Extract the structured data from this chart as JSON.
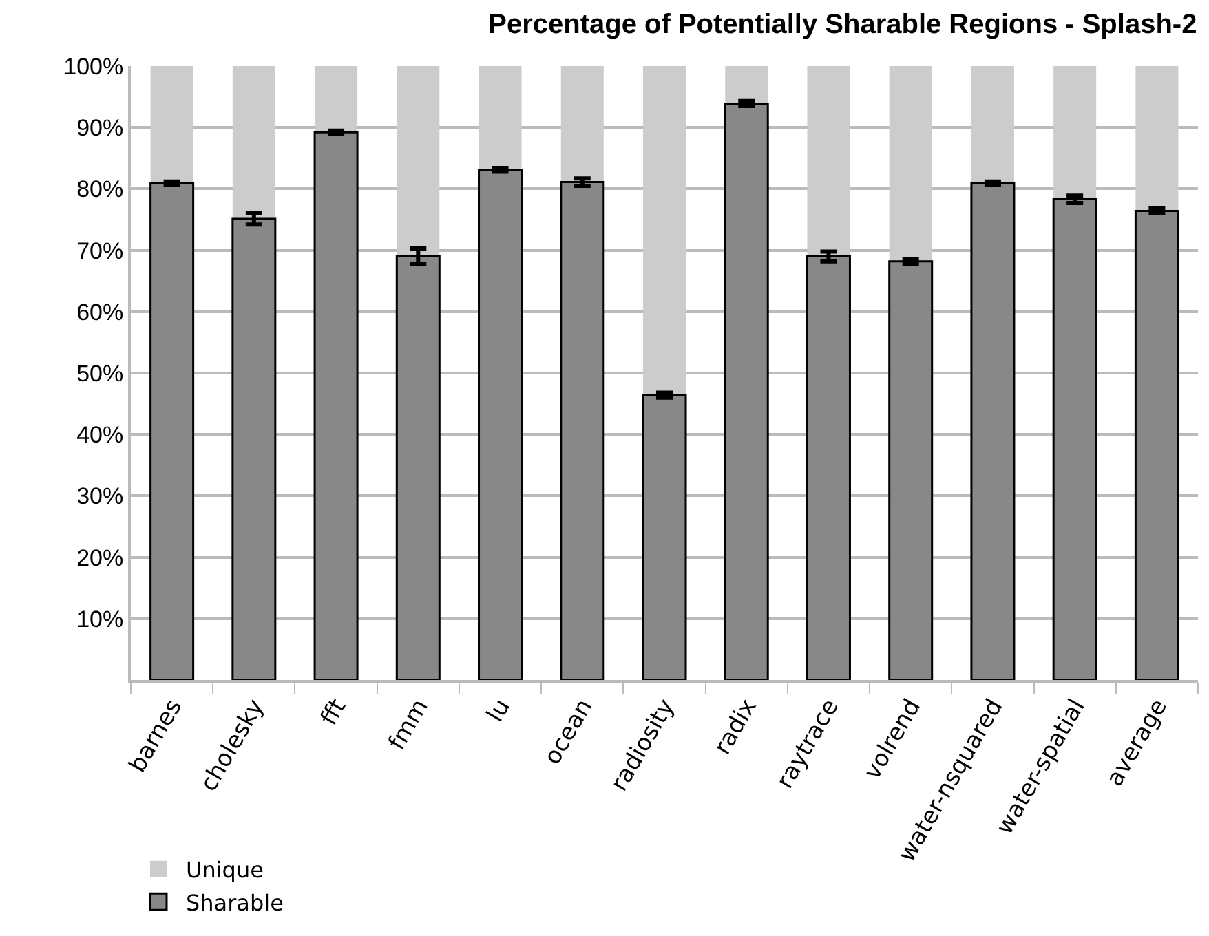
{
  "chart_data": {
    "type": "bar",
    "title": "Percentage of Potentially Sharable Regions - Splash-2",
    "categories": [
      "barnes",
      "cholesky",
      "fft",
      "fmm",
      "lu",
      "ocean",
      "radiosity",
      "radix",
      "raytrace",
      "volrend",
      "water-nsquared",
      "water-spatial",
      "average"
    ],
    "stacked": true,
    "series": [
      {
        "name": "Sharable",
        "color": "#888888",
        "values": [
          80.9,
          75.1,
          89.2,
          69.0,
          83.1,
          81.1,
          46.4,
          93.9,
          69.0,
          68.2,
          80.9,
          78.3,
          76.4
        ],
        "errors": [
          0.3,
          0.9,
          0.3,
          1.3,
          0.3,
          0.6,
          0.4,
          0.4,
          0.8,
          0.4,
          0.3,
          0.6,
          0.4
        ]
      },
      {
        "name": "Unique",
        "color": "#cccccc",
        "values": [
          19.1,
          24.9,
          10.8,
          31.0,
          16.9,
          18.9,
          53.6,
          6.1,
          31.0,
          31.8,
          19.1,
          21.7,
          23.6
        ]
      }
    ],
    "ylim": [
      0,
      100
    ],
    "yticks": [
      {
        "value": 10,
        "label": "10%"
      },
      {
        "value": 20,
        "label": "20%"
      },
      {
        "value": 30,
        "label": "30%"
      },
      {
        "value": 40,
        "label": "40%"
      },
      {
        "value": 50,
        "label": "50%"
      },
      {
        "value": 60,
        "label": "60%"
      },
      {
        "value": 70,
        "label": "70%"
      },
      {
        "value": 80,
        "label": "80%"
      },
      {
        "value": 90,
        "label": "90%"
      },
      {
        "value": 100,
        "label": "100%"
      }
    ],
    "grid": "y",
    "legend": "bottom left"
  }
}
